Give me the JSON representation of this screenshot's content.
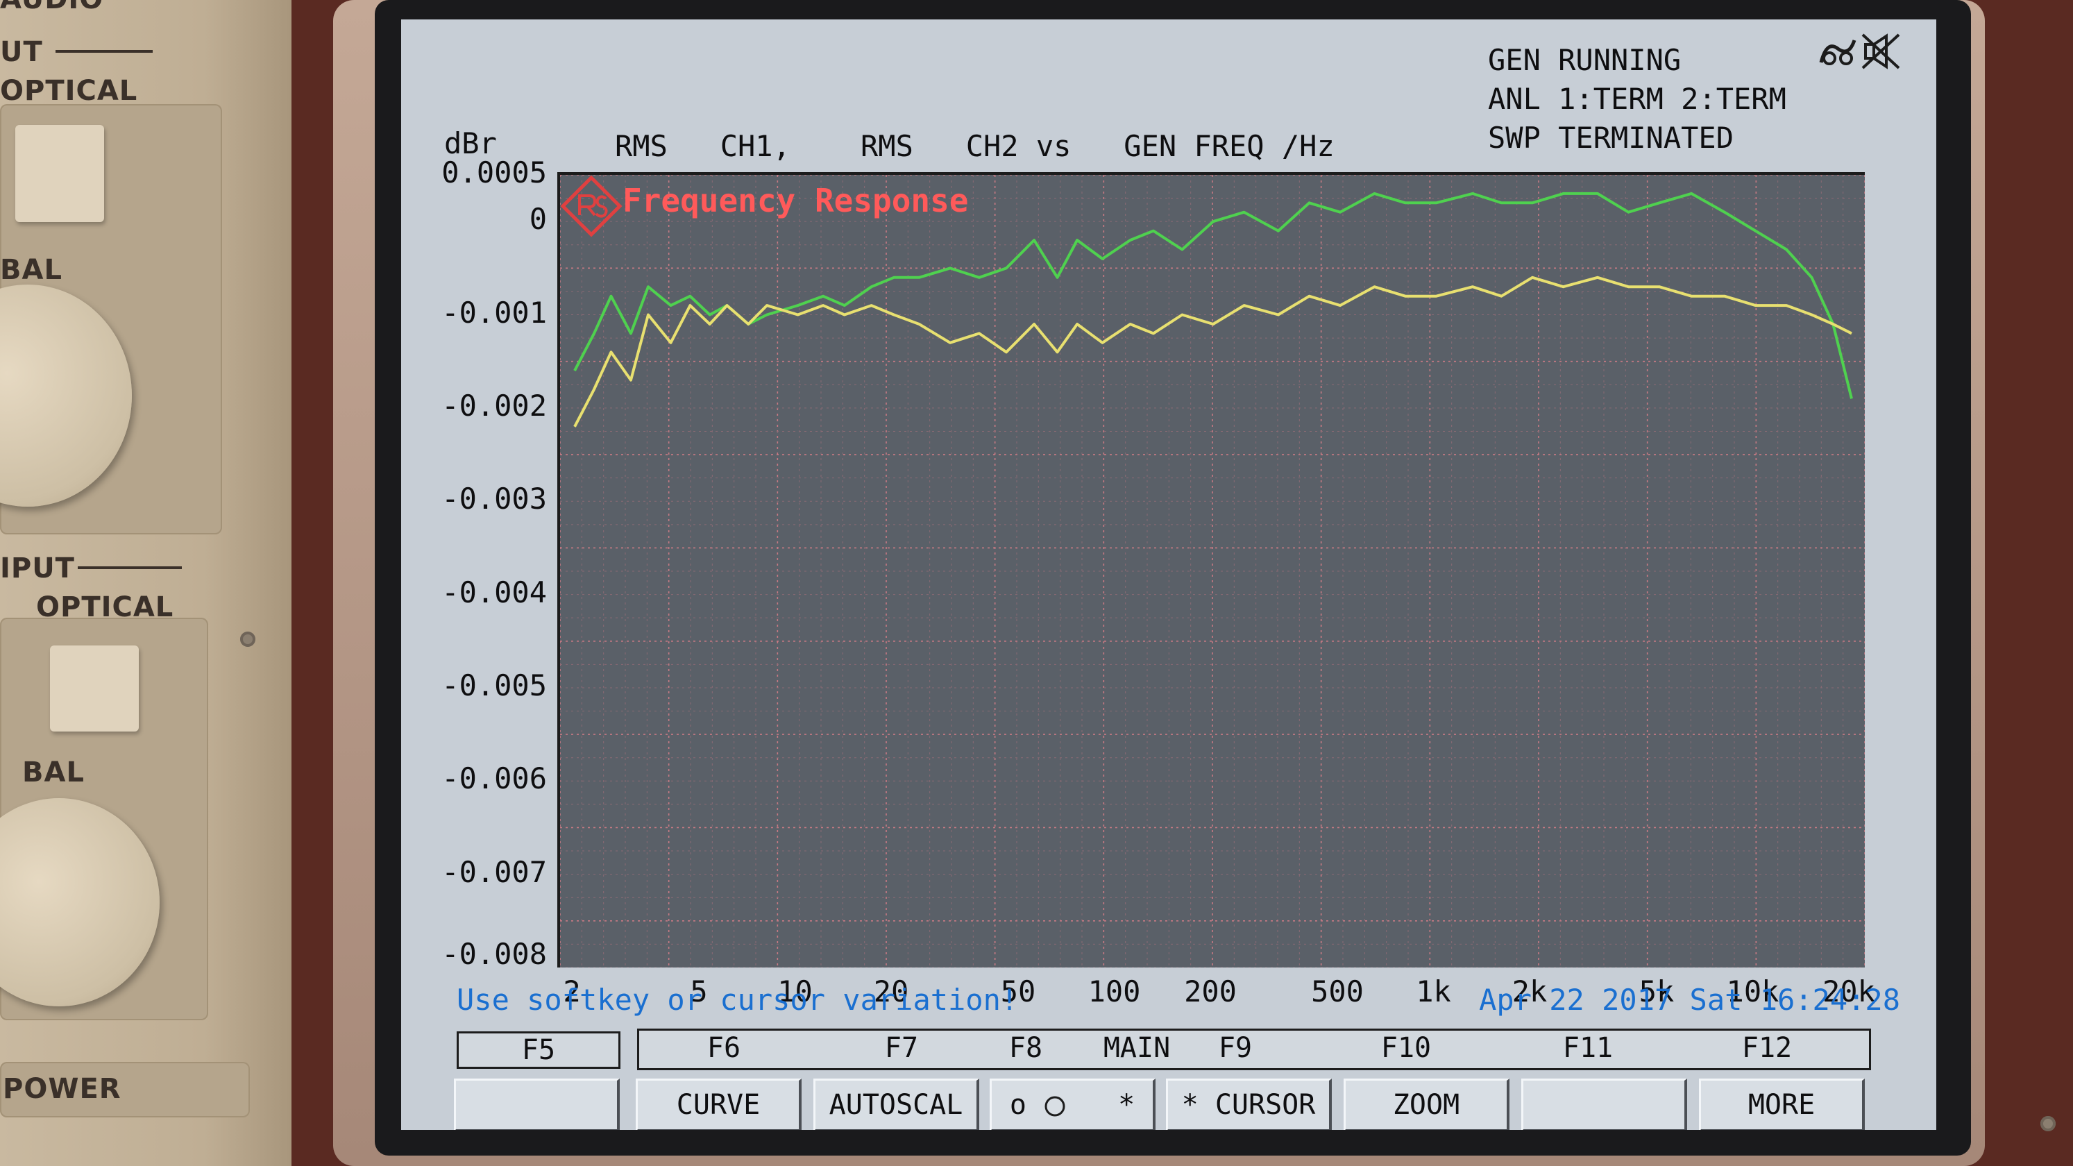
{
  "panel": {
    "top_label_partial": "AUDIO",
    "output_label": "UT",
    "output_optical": "OPTICAL",
    "output_bal": "BAL",
    "input_label": "IPUT",
    "input_optical": "OPTICAL",
    "input_bal": "BAL",
    "power_label": "POWER"
  },
  "header": {
    "unit_label": "dBr",
    "trace_desc": "RMS   CH1,    RMS   CH2 vs   GEN FREQ /Hz",
    "status_gen": "GEN RUNNING",
    "status_anl": "ANL 1:TERM 2:TERM",
    "status_swp": "SWP TERMINATED"
  },
  "icons": {
    "hdr_icon_1": "generator-symbol-icon",
    "hdr_icon_2": "speaker-muted-icon",
    "logo": "rohde-schwarz-logo"
  },
  "chart_data": {
    "type": "line",
    "title": "Frequency Response",
    "xlabel": "GEN FREQ /Hz",
    "ylabel": "dBr",
    "x_scale": "log",
    "xlim": [
      1.8,
      22000
    ],
    "ylim": [
      -0.008,
      0.0005
    ],
    "grid": true,
    "y_ticks": [
      "0.0005",
      "0",
      "-0.001",
      "-0.002",
      "-0.003",
      "-0.004",
      "-0.005",
      "-0.006",
      "-0.007",
      "-0.008"
    ],
    "y_tick_values": [
      0.0005,
      0,
      -0.001,
      -0.002,
      -0.003,
      -0.004,
      -0.005,
      -0.006,
      -0.007,
      -0.008
    ],
    "x_ticks": [
      "2",
      "5",
      "10",
      "20",
      "50",
      "100",
      "200",
      "500",
      "1k",
      "2k",
      "5k",
      "10k",
      "20k"
    ],
    "x_tick_values": [
      2,
      5,
      10,
      20,
      50,
      100,
      200,
      500,
      1000,
      2000,
      5000,
      10000,
      20000
    ],
    "colors": {
      "ch1": "#4fd14f",
      "ch2": "#e8e070"
    },
    "series": [
      {
        "color_key": "ch1",
        "x": [
          2,
          2.3,
          2.6,
          3,
          3.4,
          4,
          4.6,
          5.3,
          6,
          7,
          8,
          10,
          12,
          14,
          17,
          20,
          24,
          30,
          37,
          45,
          55,
          65,
          75,
          90,
          110,
          130,
          160,
          200,
          250,
          320,
          400,
          500,
          640,
          800,
          1000,
          1300,
          1600,
          2000,
          2500,
          3200,
          4000,
          5000,
          6300,
          8000,
          10000,
          12500,
          15000,
          17500,
          20000
        ],
        "y": [
          -0.0016,
          -0.0012,
          -0.0008,
          -0.0012,
          -0.0007,
          -0.0009,
          -0.0008,
          -0.001,
          -0.0009,
          -0.0011,
          -0.001,
          -0.0009,
          -0.0008,
          -0.0009,
          -0.0007,
          -0.0006,
          -0.0006,
          -0.0005,
          -0.0006,
          -0.0005,
          -0.0002,
          -0.0006,
          -0.0002,
          -0.0004,
          -0.0002,
          -0.0001,
          -0.0003,
          0.0,
          0.0001,
          -0.0001,
          0.0002,
          0.0001,
          0.0003,
          0.0002,
          0.0002,
          0.0003,
          0.0002,
          0.0002,
          0.0003,
          0.0003,
          0.0001,
          0.0002,
          0.0003,
          0.0001,
          -0.0001,
          -0.0003,
          -0.0006,
          -0.0011,
          -0.0019
        ]
      },
      {
        "color_key": "ch2",
        "x": [
          2,
          2.3,
          2.6,
          3,
          3.4,
          4,
          4.6,
          5.3,
          6,
          7,
          8,
          10,
          12,
          14,
          17,
          20,
          24,
          30,
          37,
          45,
          55,
          65,
          75,
          90,
          110,
          130,
          160,
          200,
          250,
          320,
          400,
          500,
          640,
          800,
          1000,
          1300,
          1600,
          2000,
          2500,
          3200,
          4000,
          5000,
          6300,
          8000,
          10000,
          12500,
          15000,
          17500,
          20000
        ],
        "y": [
          -0.0022,
          -0.0018,
          -0.0014,
          -0.0017,
          -0.001,
          -0.0013,
          -0.0009,
          -0.0011,
          -0.0009,
          -0.0011,
          -0.0009,
          -0.001,
          -0.0009,
          -0.001,
          -0.0009,
          -0.001,
          -0.0011,
          -0.0013,
          -0.0012,
          -0.0014,
          -0.0011,
          -0.0014,
          -0.0011,
          -0.0013,
          -0.0011,
          -0.0012,
          -0.001,
          -0.0011,
          -0.0009,
          -0.001,
          -0.0008,
          -0.0009,
          -0.0007,
          -0.0008,
          -0.0008,
          -0.0007,
          -0.0008,
          -0.0006,
          -0.0007,
          -0.0006,
          -0.0007,
          -0.0007,
          -0.0008,
          -0.0008,
          -0.0009,
          -0.0009,
          -0.001,
          -0.0011,
          -0.0012
        ]
      }
    ]
  },
  "status_line": {
    "message": "Use softkey or cursor variation!",
    "datetime": "Apr 22 2017 Sat 16:24:28"
  },
  "fkeys": {
    "f5": "F5",
    "f6": "F6",
    "f7": "F7",
    "f8": "F8",
    "main": "MAIN",
    "f9": "F9",
    "f10": "F10",
    "f11": "F11",
    "f12": "F12"
  },
  "softkeys": {
    "f5": "",
    "f6": "CURVE",
    "f7": "AUTOSCAL",
    "f8_off": "o",
    "f8_on": "*",
    "f9": "* CURSOR",
    "f10": "ZOOM",
    "f11": "",
    "f12": "MORE"
  }
}
